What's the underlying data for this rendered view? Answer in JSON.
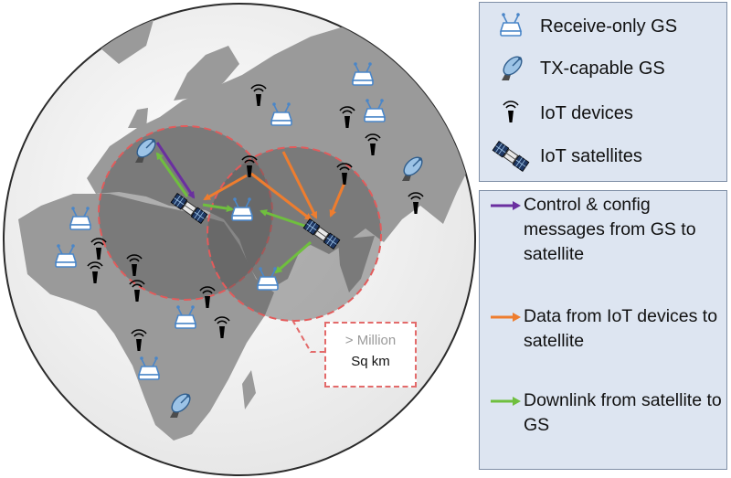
{
  "legend_items": [
    {
      "icon": "receive-only-gs-icon",
      "label": "Receive-only GS"
    },
    {
      "icon": "tx-capable-gs-icon",
      "label": "TX-capable GS"
    },
    {
      "icon": "iot-device-icon",
      "label": "IoT devices"
    },
    {
      "icon": "iot-satellite-icon",
      "label": "IoT satellites"
    }
  ],
  "arrow_legend": [
    {
      "color": "#6a2fa0",
      "label": "Control & config messages from GS to satellite"
    },
    {
      "color": "#ee7d2f",
      "label": "Data from IoT devices to satellite"
    },
    {
      "color": "#6fbf3e",
      "label": "Downlink from satellite to GS"
    }
  ],
  "callout": {
    "line1": "> Million",
    "line2": "Sq km"
  },
  "colors": {
    "ocean": "#f0f0f0",
    "land": "#9a9a9a",
    "coverage_fill": "#555555",
    "coverage_border": "#e35b5b",
    "legend_bg": "#dde5f1",
    "receive_gs": "#6fa8dc",
    "control_arrow": "#6a2fa0",
    "data_arrow": "#ee7d2f",
    "downlink_arrow": "#6fbf3e"
  }
}
